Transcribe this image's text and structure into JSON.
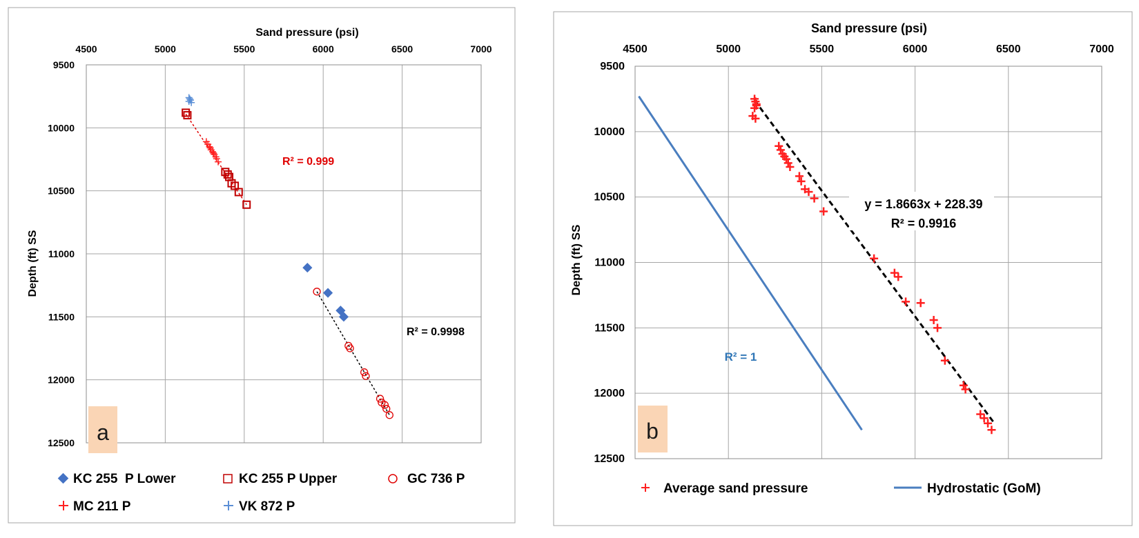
{
  "chart_data": [
    {
      "panel": "a",
      "type": "scatter",
      "xlabel": "Sand pressure (psi)",
      "ylabel": "Depth (ft) SS",
      "xlim": [
        4500,
        7000
      ],
      "ylim": [
        9500,
        12500
      ],
      "x_axis_position": "top",
      "y_axis_inverted": true,
      "x_ticks": [
        "4500",
        "5000",
        "5500",
        "6000",
        "6500",
        "7000"
      ],
      "y_ticks": [
        "9500",
        "10000",
        "10500",
        "11000",
        "11500",
        "12000",
        "12500"
      ],
      "grid": true,
      "legend_position": "bottom",
      "series": [
        {
          "name": "KC 255  P Lower",
          "marker": "diamond",
          "color": "#4472c4",
          "x": [
            5900,
            6030,
            6110,
            6130
          ],
          "y": [
            11110,
            11310,
            11450,
            11500
          ]
        },
        {
          "name": "KC 255 P Upper",
          "marker": "square-open",
          "color": "#c00000",
          "x": [
            5130,
            5140,
            5380,
            5395,
            5405,
            5420,
            5440,
            5465,
            5515
          ],
          "y": [
            9880,
            9900,
            10350,
            10370,
            10390,
            10440,
            10460,
            10510,
            10610
          ]
        },
        {
          "name": "GC 736 P",
          "marker": "circle-open",
          "color": "#e00000",
          "x": [
            5960,
            6160,
            6170,
            6260,
            6270,
            6360,
            6370,
            6390,
            6400,
            6420
          ],
          "y": [
            11300,
            11730,
            11750,
            11940,
            11970,
            12150,
            12180,
            12200,
            12230,
            12280
          ]
        },
        {
          "name": "MC 211 P",
          "marker": "plus",
          "color": "#ff2020",
          "x": [
            5260,
            5270,
            5280,
            5285,
            5290,
            5300,
            5305,
            5310,
            5320,
            5325,
            5335
          ],
          "y": [
            10110,
            10130,
            10150,
            10160,
            10175,
            10190,
            10200,
            10210,
            10230,
            10245,
            10270
          ]
        },
        {
          "name": "VK 872 P",
          "marker": "plus",
          "color": "#5b8fd6",
          "x": [
            5150,
            5155,
            5160,
            5150,
            5165
          ],
          "y": [
            9760,
            9770,
            9780,
            9790,
            9800
          ]
        }
      ],
      "fit_lines": [
        {
          "color": "#e00000",
          "x": [
            5130,
            5515
          ],
          "y": [
            9890,
            10610
          ]
        },
        {
          "color": "#000000",
          "x": [
            5960,
            6420
          ],
          "y": [
            11300,
            12280
          ]
        }
      ],
      "annotations": [
        {
          "text": "R² = 0.999",
          "color": "#e00000"
        },
        {
          "text": "R² = 0.9998",
          "color": "#000000"
        }
      ],
      "panel_label": "a"
    },
    {
      "panel": "b",
      "type": "scatter",
      "xlabel": "Sand pressure (psi)",
      "ylabel": "Depth (ft) SS",
      "xlim": [
        4500,
        7000
      ],
      "ylim": [
        9500,
        12500
      ],
      "x_axis_position": "top",
      "y_axis_inverted": true,
      "x_ticks": [
        "4500",
        "5000",
        "5500",
        "6000",
        "6500",
        "7000"
      ],
      "y_ticks": [
        "9500",
        "10000",
        "10500",
        "11000",
        "11500",
        "12000",
        "12500"
      ],
      "grid": true,
      "legend_position": "bottom",
      "series": [
        {
          "name": "Average sand pressure",
          "marker": "plus",
          "color": "#ff2020",
          "x": [
            5140,
            5145,
            5150,
            5150,
            5140,
            5130,
            5145,
            5270,
            5280,
            5290,
            5300,
            5310,
            5320,
            5330,
            5380,
            5390,
            5410,
            5430,
            5460,
            5510,
            5780,
            5890,
            5910,
            5950,
            6030,
            6100,
            6120,
            6160,
            6260,
            6270,
            6350,
            6370,
            6390,
            6410
          ],
          "y": [
            9750,
            9770,
            9790,
            9800,
            9820,
            9880,
            9900,
            10110,
            10140,
            10170,
            10190,
            10210,
            10240,
            10270,
            10340,
            10380,
            10440,
            10460,
            10510,
            10610,
            10970,
            11080,
            11110,
            11300,
            11310,
            11440,
            11500,
            11750,
            11940,
            11970,
            12160,
            12190,
            12230,
            12280
          ]
        },
        {
          "name": "Hydrostatic (GoM)",
          "marker": "line",
          "color": "#4a7ebf",
          "x": [
            4520,
            5715
          ],
          "y": [
            9730,
            12280
          ]
        }
      ],
      "fit_lines": [
        {
          "color": "#000000",
          "x": [
            5140,
            6420
          ],
          "y": [
            9760,
            12220
          ]
        }
      ],
      "annotations": [
        {
          "text": "y = 1.8663x + 228.39",
          "color": "#000000"
        },
        {
          "text": "R² = 0.9916",
          "color": "#000000"
        },
        {
          "text": "R² = 1",
          "color": "#2e75b6"
        }
      ],
      "panel_label": "b"
    }
  ]
}
